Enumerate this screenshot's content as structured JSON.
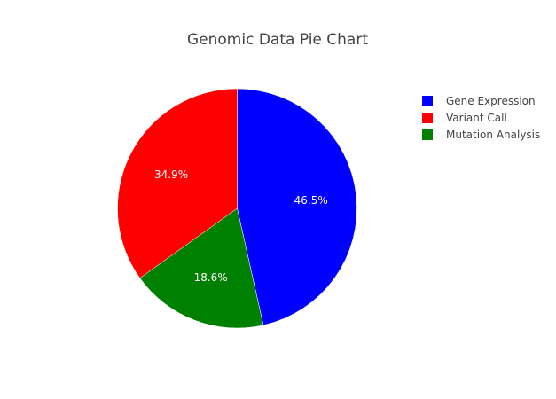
{
  "chart_data": {
    "type": "pie",
    "title": "Genomic Data Pie Chart",
    "legend_position": "top-right",
    "direction": "clockwise",
    "slices": [
      {
        "label": "Gene Expression",
        "percent": 46.5,
        "percent_label": "46.5%",
        "color": "#0000ff"
      },
      {
        "label": "Mutation Analysis",
        "percent": 18.6,
        "percent_label": "18.6%",
        "color": "#008000"
      },
      {
        "label": "Variant Call",
        "percent": 34.9,
        "percent_label": "34.9%",
        "color": "#ff0000"
      }
    ],
    "legend": [
      {
        "label": "Gene Expression",
        "color": "#0000ff"
      },
      {
        "label": "Variant Call",
        "color": "#ff0000"
      },
      {
        "label": "Mutation Analysis",
        "color": "#008000"
      }
    ]
  }
}
